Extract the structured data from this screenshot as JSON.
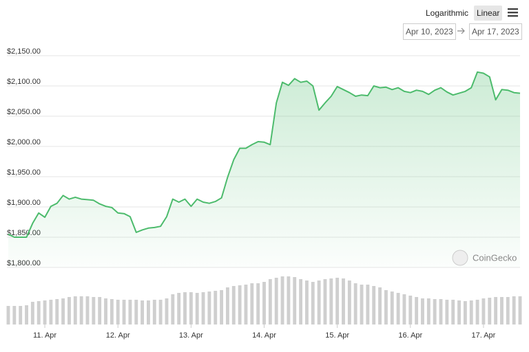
{
  "chart_data": {
    "type": "line",
    "scale_options": [
      "Logarithmic",
      "Linear"
    ],
    "log_scale": false,
    "date_range": [
      "Apr 10, 2023",
      "Apr 17, 2023"
    ],
    "watermark": "CoinGecko",
    "grid": true,
    "categories": [
      null,
      null,
      null,
      null,
      null,
      null,
      "11. Apr",
      null,
      null,
      null,
      null,
      null,
      null,
      null,
      null,
      null,
      null,
      null,
      "12. Apr",
      null,
      null,
      null,
      null,
      null,
      null,
      null,
      null,
      null,
      null,
      null,
      "13. Apr",
      null,
      null,
      null,
      null,
      null,
      null,
      null,
      null,
      null,
      null,
      null,
      "14. Apr",
      null,
      null,
      null,
      null,
      null,
      null,
      null,
      null,
      null,
      null,
      null,
      "15. Apr",
      null,
      null,
      null,
      null,
      null,
      null,
      null,
      null,
      null,
      null,
      null,
      "16. Apr",
      null,
      null,
      null,
      null,
      null,
      null,
      null,
      null,
      null,
      null,
      null,
      "17. Apr",
      null,
      null,
      null,
      null,
      null,
      null
    ],
    "ylim": [
      1800,
      2150
    ],
    "yticks": [
      {
        "value": 1800,
        "label": "$1,800.00"
      },
      {
        "value": 1850,
        "label": "$1,850.00"
      },
      {
        "value": 1900,
        "label": "$1,900.00"
      },
      {
        "value": 1950,
        "label": "$1,950.00"
      },
      {
        "value": 2000,
        "label": "$2,000.00"
      },
      {
        "value": 2050,
        "label": "$2,050.00"
      },
      {
        "value": 2100,
        "label": "$2,100.00"
      },
      {
        "value": 2150,
        "label": "$2,150.00"
      }
    ],
    "y2lim": [
      0,
      100
    ],
    "series": [
      {
        "color": "#4cbb6c",
        "values": [
          1855,
          1850,
          1850,
          1850,
          1873,
          1890,
          1883,
          1901,
          1906,
          1919,
          1913,
          1916,
          1913,
          1912,
          1911,
          1905,
          1901,
          1899,
          1890,
          1889,
          1884,
          1858,
          1862,
          1865,
          1866,
          1868,
          1884,
          1913,
          1908,
          1913,
          1901,
          1913,
          1908,
          1906,
          1909,
          1915,
          1949,
          1978,
          1997,
          1997,
          2003,
          2008,
          2007,
          2003,
          2072,
          2106,
          2101,
          2112,
          2106,
          2108,
          2100,
          2060,
          2072,
          2083,
          2099,
          2094,
          2089,
          2083,
          2085,
          2084,
          2100,
          2097,
          2098,
          2094,
          2097,
          2091,
          2089,
          2093,
          2091,
          2086,
          2093,
          2097,
          2090,
          2085,
          2088,
          2091,
          2097,
          2123,
          2121,
          2115,
          2077,
          2094,
          2093,
          2089,
          2088
        ]
      },
      {
        "color": "#cfcfcf",
        "axis": "y2",
        "values": [
          27,
          27,
          27,
          28,
          33,
          34,
          35,
          36,
          37,
          38,
          40,
          41,
          41,
          41,
          40,
          40,
          38,
          37,
          36,
          36,
          36,
          36,
          35,
          35,
          36,
          36,
          38,
          44,
          46,
          47,
          47,
          46,
          47,
          48,
          49,
          50,
          54,
          56,
          57,
          58,
          60,
          60,
          62,
          66,
          68,
          70,
          70,
          69,
          66,
          64,
          62,
          64,
          66,
          67,
          68,
          67,
          64,
          60,
          58,
          58,
          56,
          54,
          50,
          48,
          46,
          44,
          42,
          40,
          38,
          38,
          37,
          37,
          36,
          36,
          35,
          34,
          35,
          36,
          38,
          39,
          40,
          40,
          40,
          41,
          41
        ]
      }
    ]
  }
}
